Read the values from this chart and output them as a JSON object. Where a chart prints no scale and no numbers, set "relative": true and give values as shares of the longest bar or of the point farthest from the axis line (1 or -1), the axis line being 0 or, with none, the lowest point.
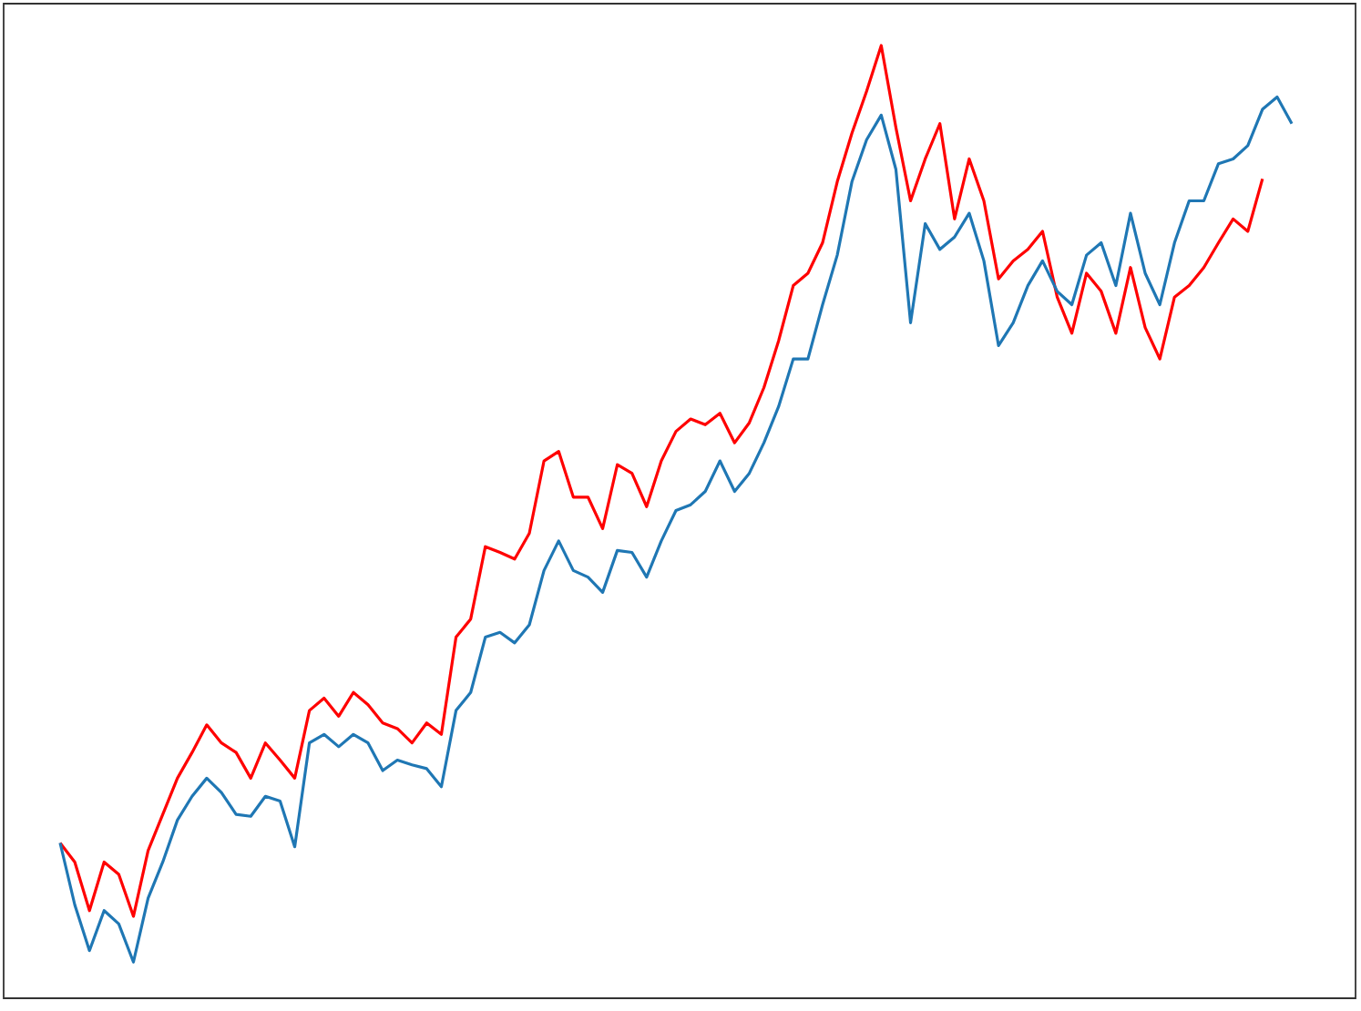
{
  "chart_data": {
    "type": "line",
    "relative": true,
    "categories": [
      null,
      null,
      null,
      null,
      null,
      null,
      null,
      null,
      null,
      null,
      null,
      null,
      null,
      null,
      null,
      null,
      null,
      null,
      null,
      null,
      null,
      null,
      null,
      null,
      null,
      null,
      null,
      null,
      null,
      null,
      null,
      null,
      null,
      null,
      null,
      null,
      null,
      null,
      null,
      null,
      null,
      null,
      null,
      null,
      null,
      null,
      null,
      null,
      null,
      null,
      null,
      null,
      null,
      null,
      null,
      null,
      null,
      null,
      null,
      null,
      null,
      null,
      null,
      null,
      null,
      null,
      null,
      null,
      null,
      null,
      null,
      null,
      null,
      null,
      null,
      null,
      null,
      null,
      null,
      null,
      null,
      null,
      null,
      null,
      null
    ],
    "series": [
      {
        "color": "#ff0000",
        "values": [
          0.163,
          0.143,
          0.092,
          0.143,
          0.13,
          0.086,
          0.155,
          0.193,
          0.231,
          0.258,
          0.287,
          0.268,
          0.258,
          0.231,
          0.268,
          0.25,
          0.231,
          0.302,
          0.315,
          0.296,
          0.321,
          0.308,
          0.289,
          0.283,
          0.268,
          0.289,
          0.277,
          0.379,
          0.398,
          0.474,
          0.468,
          0.461,
          0.488,
          0.564,
          0.574,
          0.526,
          0.526,
          0.493,
          0.56,
          0.551,
          0.516,
          0.564,
          0.595,
          0.608,
          0.602,
          0.614,
          0.583,
          0.604,
          0.641,
          0.69,
          0.748,
          0.761,
          0.793,
          0.857,
          0.908,
          0.952,
          1,
          0.914,
          0.837,
          0.881,
          0.918,
          0.818,
          0.881,
          0.837,
          0.755,
          0.774,
          0.786,
          0.805,
          0.736,
          0.698,
          0.761,
          0.742,
          0.698,
          0.767,
          0.704,
          0.671,
          0.736,
          0.748,
          0.767,
          0.793,
          0.818,
          0.805,
          0.86,
          null,
          null
        ]
      },
      {
        "color": "#1f77b4",
        "values": [
          0.163,
          0.098,
          0.05,
          0.092,
          0.078,
          0.038,
          0.105,
          0.143,
          0.187,
          0.212,
          0.231,
          0.216,
          0.193,
          0.191,
          0.212,
          0.207,
          0.159,
          0.268,
          0.277,
          0.264,
          0.277,
          0.268,
          0.239,
          0.25,
          0.245,
          0.241,
          0.222,
          0.302,
          0.321,
          0.379,
          0.384,
          0.373,
          0.392,
          0.449,
          0.48,
          0.449,
          0.442,
          0.426,
          0.47,
          0.468,
          0.442,
          0.48,
          0.512,
          0.518,
          0.532,
          0.564,
          0.532,
          0.551,
          0.583,
          0.621,
          0.671,
          0.671,
          0.728,
          0.78,
          0.857,
          0.901,
          0.927,
          0.87,
          0.709,
          0.813,
          0.786,
          0.799,
          0.824,
          0.774,
          0.685,
          0.709,
          0.748,
          0.774,
          0.742,
          0.728,
          0.78,
          0.793,
          0.748,
          0.824,
          0.761,
          0.728,
          0.793,
          0.837,
          0.837,
          0.876,
          0.881,
          0.895,
          0.933,
          0.946,
          0.918
        ]
      }
    ]
  }
}
